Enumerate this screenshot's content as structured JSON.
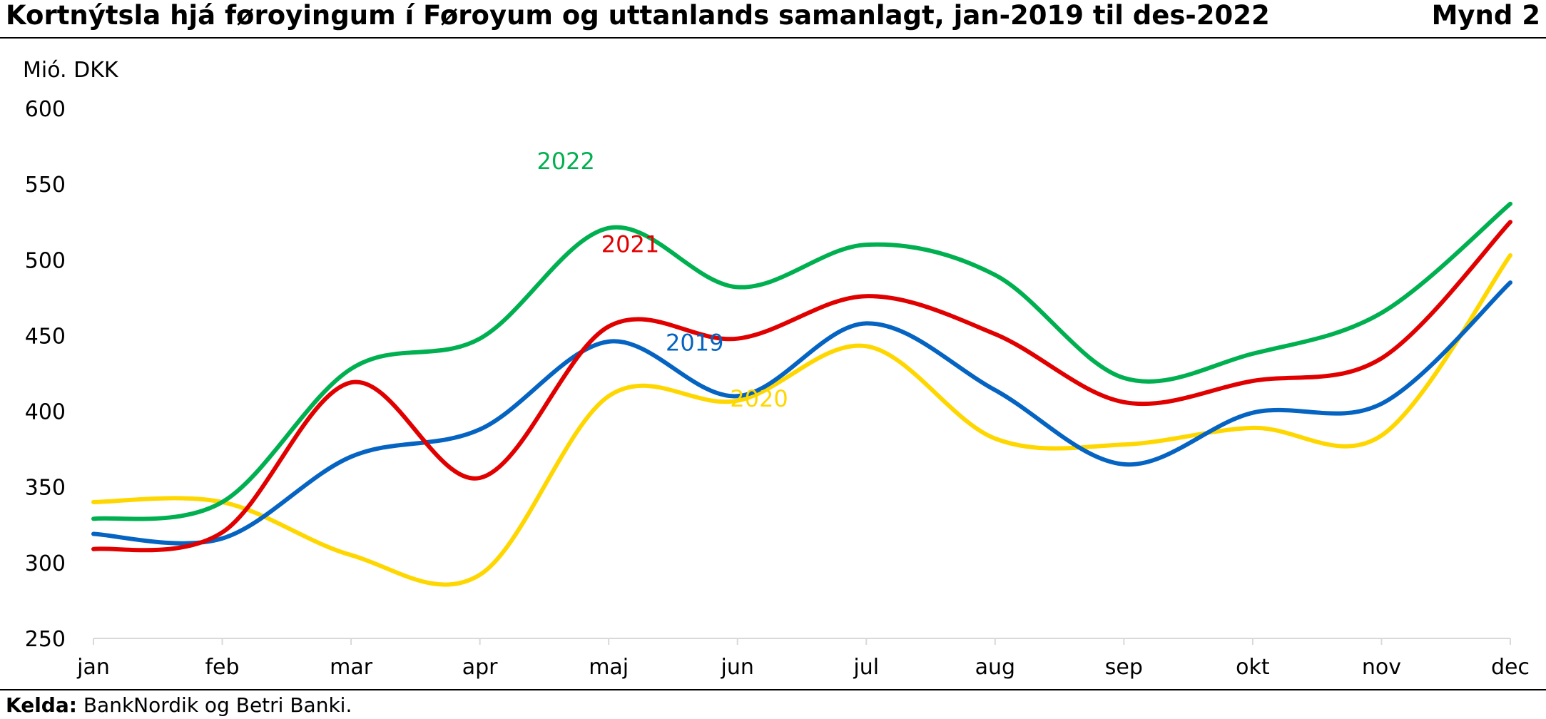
{
  "header": {
    "title": "Kortnýtsla hjá føroyingum í Føroyum og uttanlands samanlagt, jan-2019 til des-2022",
    "figure_label": "Mynd 2"
  },
  "footer": {
    "source_label": "Kelda:",
    "source_text": " BankNordik og Betri Banki."
  },
  "chart_data": {
    "type": "line",
    "title": "Kortnýtsla hjá føroyingum í Føroyum og uttanlands samanlagt, jan-2019 til des-2022",
    "ylabel": "Mió. DKK",
    "xlabel": "",
    "categories": [
      "jan",
      "feb",
      "mar",
      "apr",
      "maj",
      "jun",
      "jul",
      "aug",
      "sep",
      "okt",
      "nov",
      "dec"
    ],
    "ylim": [
      250,
      600
    ],
    "yticks": [
      250,
      300,
      350,
      400,
      450,
      500,
      550,
      600
    ],
    "grid": false,
    "legend": "inline labels",
    "series": [
      {
        "name": "2019",
        "color": "#0563C1",
        "values": [
          319,
          316,
          370,
          388,
          446,
          410,
          458,
          414,
          365,
          399,
          405,
          485
        ]
      },
      {
        "name": "2020",
        "color": "#FFD700",
        "values": [
          340,
          340,
          305,
          292,
          410,
          407,
          443,
          382,
          378,
          389,
          384,
          503
        ]
      },
      {
        "name": "2021",
        "color": "#E00000",
        "values": [
          309,
          320,
          419,
          356,
          456,
          448,
          476,
          451,
          406,
          420,
          435,
          525
        ]
      },
      {
        "name": "2022",
        "color": "#00B050",
        "values": [
          329,
          340,
          428,
          448,
          521,
          482,
          510,
          490,
          422,
          438,
          465,
          537
        ]
      }
    ]
  }
}
